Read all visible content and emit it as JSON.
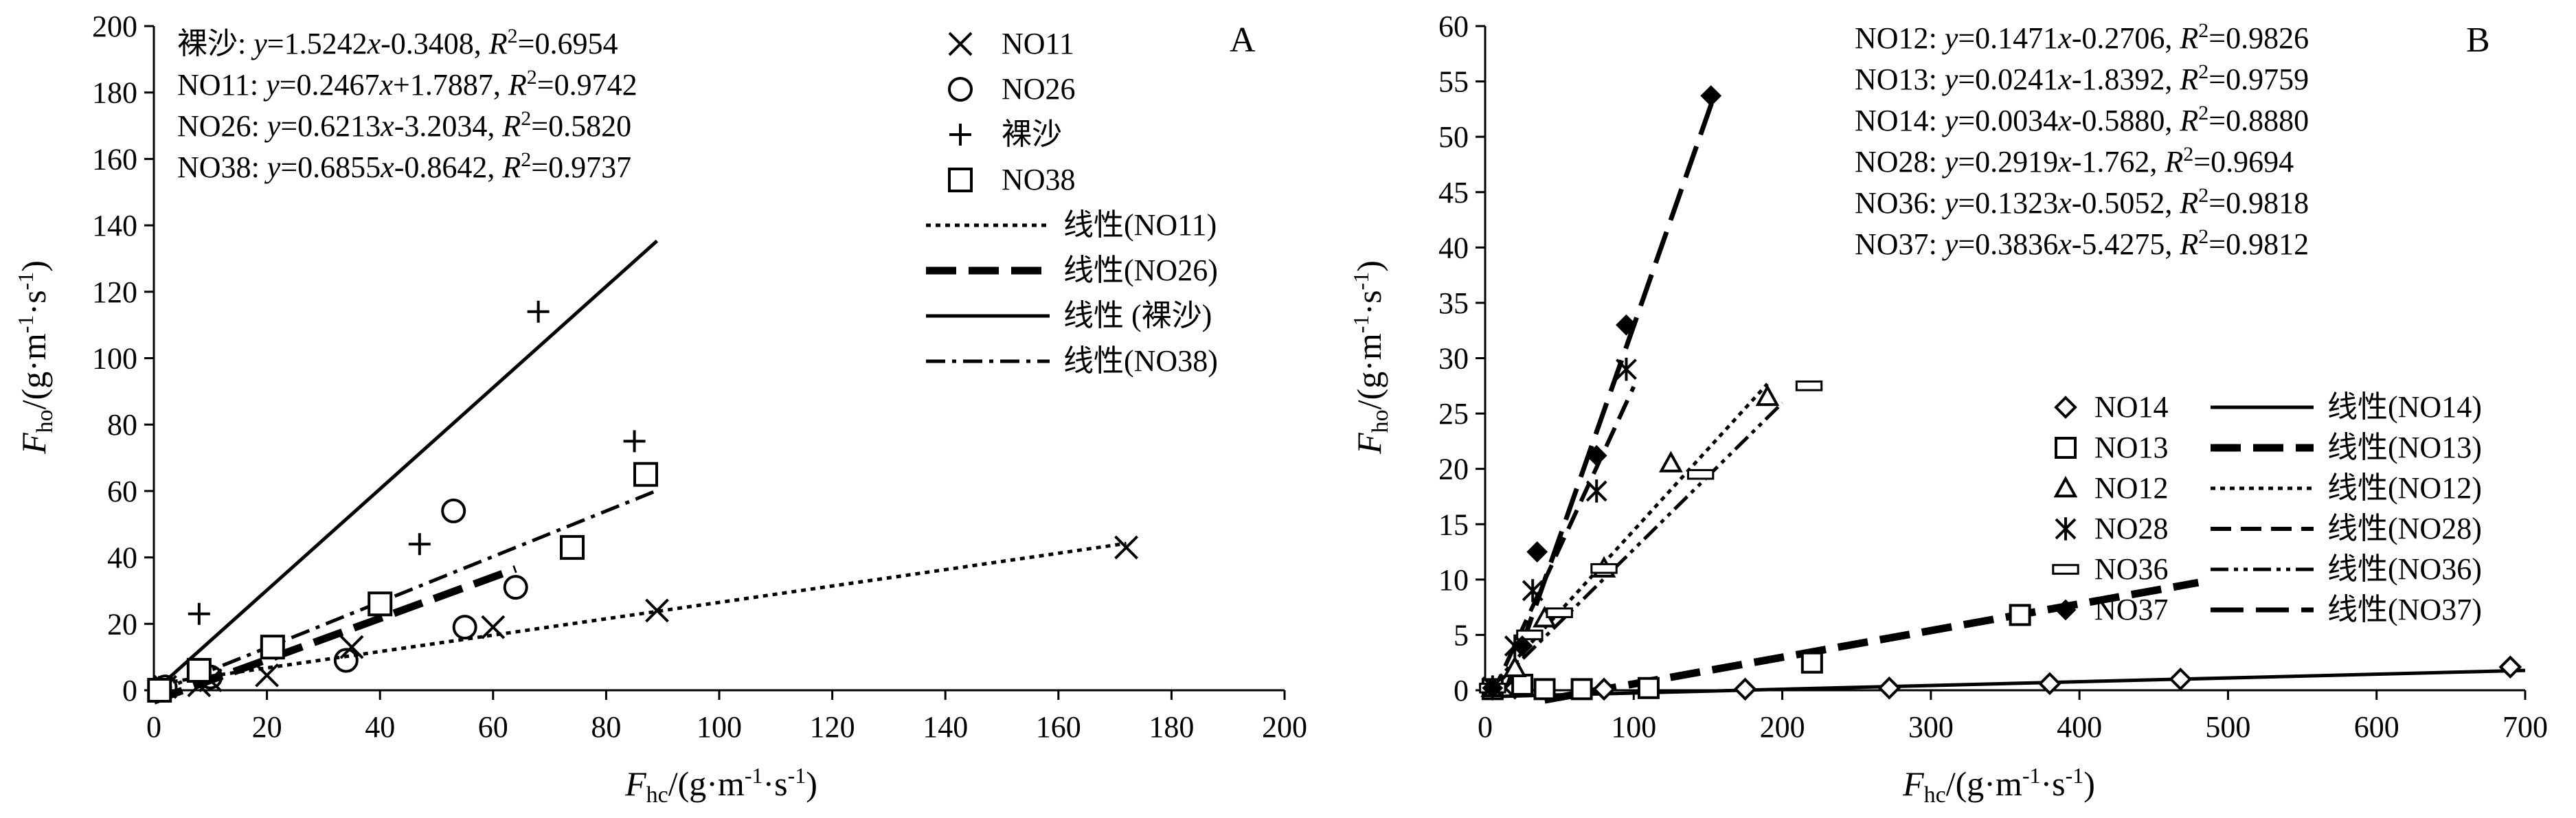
{
  "chart_data": [
    {
      "type": "scatter",
      "panel_label": "A",
      "xlabel": {
        "main": "F",
        "sub": "hc",
        "unit": "/(g·m",
        "sup1": "-1",
        "mid": "·s",
        "sup2": "-1",
        "end": ")"
      },
      "ylabel": {
        "main": "F",
        "sub": "ho",
        "unit": "/(g·m",
        "sup1": "-1",
        "mid": "·s",
        "sup2": "-1",
        "end": ")"
      },
      "xlim": [
        0,
        200
      ],
      "ylim": [
        0,
        200
      ],
      "x_ticks": [
        "0",
        "20",
        "40",
        "60",
        "80",
        "100",
        "120",
        "140",
        "160",
        "180",
        "200"
      ],
      "y_ticks": [
        "0",
        "20",
        "40",
        "60",
        "80",
        "100",
        "120",
        "140",
        "160",
        "180",
        "200"
      ],
      "grid": false,
      "legend_position": "top-right",
      "equations": [
        {
          "name": "裸沙",
          "eq": "y=1.5242x-0.3408",
          "r2": "0.6954"
        },
        {
          "name": "NO11",
          "eq": "y=0.2467x+1.7887",
          "r2": "0.9742"
        },
        {
          "name": "NO26",
          "eq": "y=0.6213x-3.2034",
          "r2": "0.5820"
        },
        {
          "name": "NO38",
          "eq": "y=0.6855x-0.8642",
          "r2": "0.9737"
        }
      ],
      "series": [
        {
          "name": "NO11",
          "marker": "x",
          "points": [
            [
              2,
              1
            ],
            [
              8,
              1.5
            ],
            [
              10,
              3
            ],
            [
              20,
              4.5
            ],
            [
              35,
              13
            ],
            [
              60,
              19
            ],
            [
              89,
              24
            ],
            [
              172,
              43
            ]
          ]
        },
        {
          "name": "NO26",
          "marker": "circle",
          "points": [
            [
              2,
              1
            ],
            [
              10,
              4
            ],
            [
              34,
              9
            ],
            [
              53,
              54
            ],
            [
              55,
              19
            ],
            [
              64,
              31
            ]
          ]
        },
        {
          "name": "裸沙",
          "marker": "plus",
          "points": [
            [
              1,
              1
            ],
            [
              8,
              23
            ],
            [
              47,
              44
            ],
            [
              68,
              114
            ],
            [
              85,
              75
            ]
          ]
        },
        {
          "name": "NO38",
          "marker": "square",
          "points": [
            [
              1,
              0
            ],
            [
              8,
              6
            ],
            [
              21,
              13
            ],
            [
              40,
              26
            ],
            [
              74,
              43
            ],
            [
              87,
              65
            ]
          ]
        }
      ],
      "trendlines": [
        {
          "name": "线性(NO11)",
          "style": "dotted",
          "slope": 0.2467,
          "intercept": 1.7887,
          "x_range": [
            0,
            172
          ]
        },
        {
          "name": "线性(NO26)",
          "style": "thick-dash",
          "slope": 0.6213,
          "intercept": -3.2034,
          "x_range": [
            0,
            64
          ]
        },
        {
          "name": "线性 (裸沙)",
          "style": "solid",
          "slope": 1.5242,
          "intercept": -0.3408,
          "x_range": [
            0,
            89
          ]
        },
        {
          "name": "线性(NO38)",
          "style": "dash-dot",
          "slope": 0.6855,
          "intercept": -0.8642,
          "x_range": [
            0,
            89
          ]
        }
      ]
    },
    {
      "type": "scatter",
      "panel_label": "B",
      "xlabel": {
        "main": "F",
        "sub": "hc",
        "unit": "/(g·m",
        "sup1": "-1",
        "mid": "·s",
        "sup2": "-1",
        "end": ")"
      },
      "ylabel": {
        "main": "F",
        "sub": "ho",
        "unit": "/(g·m",
        "sup1": "-1",
        "mid": "·s",
        "sup2": "-1",
        "end": ")"
      },
      "xlim": [
        0,
        700
      ],
      "ylim": [
        0,
        60
      ],
      "x_ticks": [
        "0",
        "100",
        "200",
        "300",
        "400",
        "500",
        "600",
        "700"
      ],
      "y_ticks": [
        "0",
        "5",
        "10",
        "15",
        "20",
        "25",
        "30",
        "35",
        "40",
        "45",
        "50",
        "55",
        "60"
      ],
      "grid": false,
      "legend_position": "right",
      "equations": [
        {
          "name": "NO12",
          "eq": "y=0.1471x-0.2706",
          "r2": "0.9826"
        },
        {
          "name": "NO13",
          "eq": "y=0.0241x-1.8392",
          "r2": "0.9759"
        },
        {
          "name": "NO14",
          "eq": "y=0.0034x-0.5880",
          "r2": "0.8880"
        },
        {
          "name": "NO28",
          "eq": "y=0.2919x-1.762",
          "r2": "0.9694"
        },
        {
          "name": "NO36",
          "eq": "y=0.1323x-0.5052",
          "r2": "0.9818"
        },
        {
          "name": "NO37",
          "eq": "y=0.3836x-5.4275",
          "r2": "0.9812"
        }
      ],
      "series": [
        {
          "name": "NO14",
          "marker": "diamond",
          "points": [
            [
              5,
              0.1
            ],
            [
              20,
              0.2
            ],
            [
              80,
              0.1
            ],
            [
              175,
              0.1
            ],
            [
              272,
              0.2
            ],
            [
              380,
              0.6
            ],
            [
              468,
              1.0
            ],
            [
              690,
              2.1
            ]
          ]
        },
        {
          "name": "NO13",
          "marker": "square",
          "points": [
            [
              5,
              0.1
            ],
            [
              25,
              0.5
            ],
            [
              40,
              0.1
            ],
            [
              65,
              0.1
            ],
            [
              110,
              0.2
            ],
            [
              220,
              2.5
            ],
            [
              360,
              6.8
            ]
          ]
        },
        {
          "name": "NO12",
          "marker": "triangle",
          "points": [
            [
              5,
              0.2
            ],
            [
              20,
              2
            ],
            [
              40,
              6.5
            ],
            [
              80,
              11
            ],
            [
              125,
              20.5
            ],
            [
              190,
              26.5
            ]
          ]
        },
        {
          "name": "NO28",
          "marker": "asterisk",
          "points": [
            [
              5,
              0.3
            ],
            [
              20,
              4
            ],
            [
              32,
              9
            ],
            [
              75,
              18
            ],
            [
              95,
              29
            ]
          ]
        },
        {
          "name": "NO36",
          "marker": "dash",
          "points": [
            [
              5,
              0.2
            ],
            [
              30,
              5
            ],
            [
              50,
              7
            ],
            [
              80,
              11
            ],
            [
              145,
              19.5
            ],
            [
              218,
              27.5
            ]
          ]
        },
        {
          "name": "NO37",
          "marker": "filled-diamond",
          "points": [
            [
              5,
              0.2
            ],
            [
              25,
              4
            ],
            [
              35,
              12.5
            ],
            [
              75,
              21.2
            ],
            [
              95,
              33
            ],
            [
              152,
              53.7
            ]
          ]
        }
      ],
      "trendlines": [
        {
          "name": "线性(NO14)",
          "style": "solid",
          "slope": 0.0034,
          "intercept": -0.588,
          "x_range": [
            5,
            700
          ]
        },
        {
          "name": "线性(NO13)",
          "style": "thick-dash",
          "slope": 0.0241,
          "intercept": -1.8392,
          "x_range": [
            40,
            480
          ]
        },
        {
          "name": "线性(NO12)",
          "style": "dotted",
          "slope": 0.1471,
          "intercept": -0.2706,
          "x_range": [
            5,
            190
          ]
        },
        {
          "name": "线性(NO28)",
          "style": "dash",
          "slope": 0.2919,
          "intercept": -1.762,
          "x_range": [
            5,
            100
          ]
        },
        {
          "name": "线性(NO36)",
          "style": "dash-dot-dot",
          "slope": 0.1323,
          "intercept": -0.5052,
          "x_range": [
            5,
            200
          ]
        },
        {
          "name": "线性(NO37)",
          "style": "long-dash",
          "slope": 0.3836,
          "intercept": -5.4275,
          "x_range": [
            14,
            155
          ]
        }
      ]
    }
  ]
}
